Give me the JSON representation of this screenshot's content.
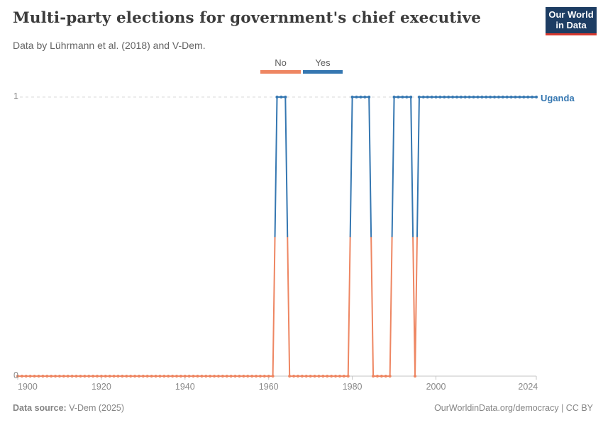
{
  "header": {
    "title": "Multi-party elections for government's chief executive",
    "subtitle": "Data by Lührmann et al. (2018) and V-Dem."
  },
  "logo": {
    "line1": "Our World",
    "line2": "in Data"
  },
  "footer": {
    "source_label": "Data source:",
    "source_value": "V-Dem (2025)",
    "credit": "OurWorldinData.org/democracy | CC BY"
  },
  "colors": {
    "no": "#ee8662",
    "yes": "#3577b1",
    "logo_navy": "#1d3d63",
    "logo_red": "#d7382e",
    "grid": "#dadada",
    "axis": "#c4c4c4",
    "tick_text": "#8a8a8a"
  },
  "chart_data": {
    "type": "line",
    "title": "Multi-party elections for government's chief executive",
    "entity": "Uganda",
    "x": {
      "min": 1900,
      "max": 2024,
      "ticks": [
        1900,
        1920,
        1940,
        1960,
        1980,
        2000,
        2024
      ]
    },
    "y_axis": {
      "top": "1",
      "bottom": "0",
      "ylim": [
        0,
        1
      ]
    },
    "legend": [
      {
        "label": "No",
        "value": 0
      },
      {
        "label": "Yes",
        "value": 1
      }
    ],
    "segments": [
      {
        "start_year": 1900,
        "end_year": 1961,
        "value": 0,
        "label": "No"
      },
      {
        "start_year": 1962,
        "end_year": 1964,
        "value": 1,
        "label": "Yes"
      },
      {
        "start_year": 1965,
        "end_year": 1979,
        "value": 0,
        "label": "No"
      },
      {
        "start_year": 1980,
        "end_year": 1984,
        "value": 1,
        "label": "Yes"
      },
      {
        "start_year": 1985,
        "end_year": 1989,
        "value": 0,
        "label": "No"
      },
      {
        "start_year": 1990,
        "end_year": 1994,
        "value": 1,
        "label": "Yes"
      },
      {
        "start_year": 1995,
        "end_year": 1995,
        "value": 0,
        "label": "No"
      },
      {
        "start_year": 1996,
        "end_year": 2024,
        "value": 1,
        "label": "Yes"
      }
    ]
  }
}
